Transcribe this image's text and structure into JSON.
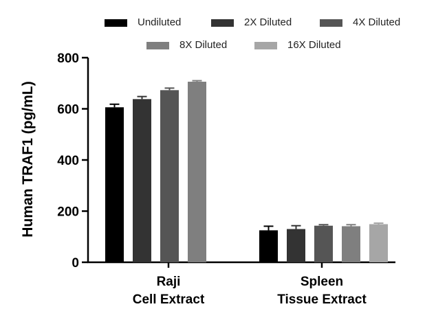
{
  "chart_data": {
    "type": "bar",
    "title": "",
    "xlabel": "",
    "ylabel": "Human TRAF1 (pg/mL)",
    "ylim": [
      0,
      800
    ],
    "yticks": [
      0,
      200,
      400,
      600,
      800
    ],
    "grid": false,
    "legend_position": "top",
    "categories": [
      {
        "line1": "Raji",
        "line2": "Cell Extract"
      },
      {
        "line1": "Spleen",
        "line2": "Tissue Extract"
      }
    ],
    "series": [
      {
        "name": "Undiluted",
        "color": "#000000",
        "values": [
          606,
          125
        ],
        "errors": [
          12,
          16
        ]
      },
      {
        "name": "2X Diluted",
        "color": "#333333",
        "values": [
          638,
          130
        ],
        "errors": [
          10,
          13
        ]
      },
      {
        "name": "4X Diluted",
        "color": "#555555",
        "values": [
          673,
          143
        ],
        "errors": [
          8,
          4
        ]
      },
      {
        "name": "8X Diluted",
        "color": "#7f7f7f",
        "values": [
          706,
          141
        ],
        "errors": [
          4,
          6
        ]
      },
      {
        "name": "16X Diluted",
        "color": "#a6a6a6",
        "values": [
          null,
          149
        ],
        "errors": [
          null,
          4
        ]
      }
    ]
  }
}
